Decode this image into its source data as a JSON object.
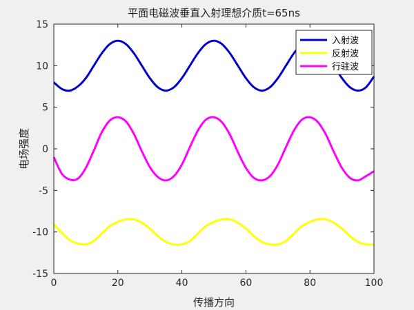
{
  "chart_data": {
    "type": "line",
    "title": "平面电磁波垂直入射理想介质t=65ns",
    "xlabel": "传播方向",
    "ylabel": "电场强度",
    "xlim": [
      0,
      100
    ],
    "ylim": [
      -15,
      15
    ],
    "xticks": [
      "0",
      "20",
      "40",
      "60",
      "80",
      "100"
    ],
    "yticks": [
      "-15",
      "-10",
      "-5",
      "0",
      "5",
      "10",
      "15"
    ],
    "grid": false,
    "legend_position": "top-right",
    "series": [
      {
        "name": "入射波",
        "color": "#0000cc",
        "x": [
          0,
          2.5,
          5,
          7.5,
          10,
          12.5,
          15,
          17.5,
          20,
          22.5,
          25,
          27.5,
          30,
          32.5,
          35,
          37.5,
          40,
          42.5,
          45,
          47.5,
          50,
          52.5,
          55,
          57.5,
          60,
          62.5,
          65,
          67.5,
          70,
          72.5,
          75,
          77.5,
          80,
          82.5,
          85,
          87.5,
          90,
          92.5,
          95,
          97.5,
          100
        ],
        "values": [
          8.0,
          7.2,
          7.0,
          7.5,
          8.5,
          10.0,
          11.5,
          12.6,
          13.0,
          12.6,
          11.5,
          10.0,
          8.5,
          7.4,
          7.0,
          7.4,
          8.5,
          10.0,
          11.5,
          12.6,
          13.0,
          12.6,
          11.5,
          10.0,
          8.5,
          7.4,
          7.0,
          7.4,
          8.5,
          10.0,
          11.5,
          12.6,
          13.0,
          12.6,
          11.5,
          10.0,
          8.5,
          7.4,
          7.0,
          7.4,
          8.7
        ]
      },
      {
        "name": "反射波",
        "color": "#ffff00",
        "x": [
          0,
          2.5,
          5,
          7.5,
          10,
          12.5,
          15,
          17.5,
          20,
          22.5,
          25,
          27.5,
          30,
          32.5,
          35,
          37.5,
          40,
          42.5,
          45,
          47.5,
          50,
          52.5,
          55,
          57.5,
          60,
          62.5,
          65,
          67.5,
          70,
          72.5,
          75,
          77.5,
          80,
          82.5,
          85,
          87.5,
          90,
          92.5,
          95,
          97.5,
          100
        ],
        "values": [
          -9.1,
          -10.1,
          -11.0,
          -11.4,
          -11.5,
          -11.1,
          -10.2,
          -9.3,
          -8.8,
          -8.5,
          -8.5,
          -8.9,
          -9.6,
          -10.5,
          -11.2,
          -11.5,
          -11.5,
          -11.1,
          -10.2,
          -9.3,
          -8.8,
          -8.5,
          -8.5,
          -8.9,
          -9.6,
          -10.5,
          -11.2,
          -11.5,
          -11.5,
          -11.1,
          -10.2,
          -9.3,
          -8.8,
          -8.5,
          -8.5,
          -8.9,
          -9.6,
          -10.5,
          -11.2,
          -11.5,
          -11.5
        ]
      },
      {
        "name": "行驻波",
        "color": "#ff00ff",
        "x": [
          0,
          2.5,
          5,
          7.5,
          10,
          12.5,
          15,
          17.5,
          20,
          22.5,
          25,
          27.5,
          30,
          32.5,
          35,
          37.5,
          40,
          42.5,
          45,
          47.5,
          50,
          52.5,
          55,
          57.5,
          60,
          62.5,
          65,
          67.5,
          70,
          72.5,
          75,
          77.5,
          80,
          82.5,
          85,
          87.5,
          90,
          92.5,
          95,
          97.5,
          100
        ],
        "values": [
          -1.0,
          -3.0,
          -3.7,
          -3.6,
          -2.3,
          -0.2,
          2.0,
          3.4,
          3.8,
          3.3,
          1.8,
          -0.3,
          -2.2,
          -3.4,
          -3.8,
          -3.3,
          -1.9,
          0.2,
          2.2,
          3.5,
          3.8,
          3.2,
          1.7,
          -0.4,
          -2.3,
          -3.5,
          -3.8,
          -3.3,
          -1.9,
          0.2,
          2.2,
          3.5,
          3.8,
          3.2,
          1.7,
          -0.4,
          -2.3,
          -3.5,
          -3.8,
          -3.3,
          -2.7
        ]
      }
    ]
  }
}
